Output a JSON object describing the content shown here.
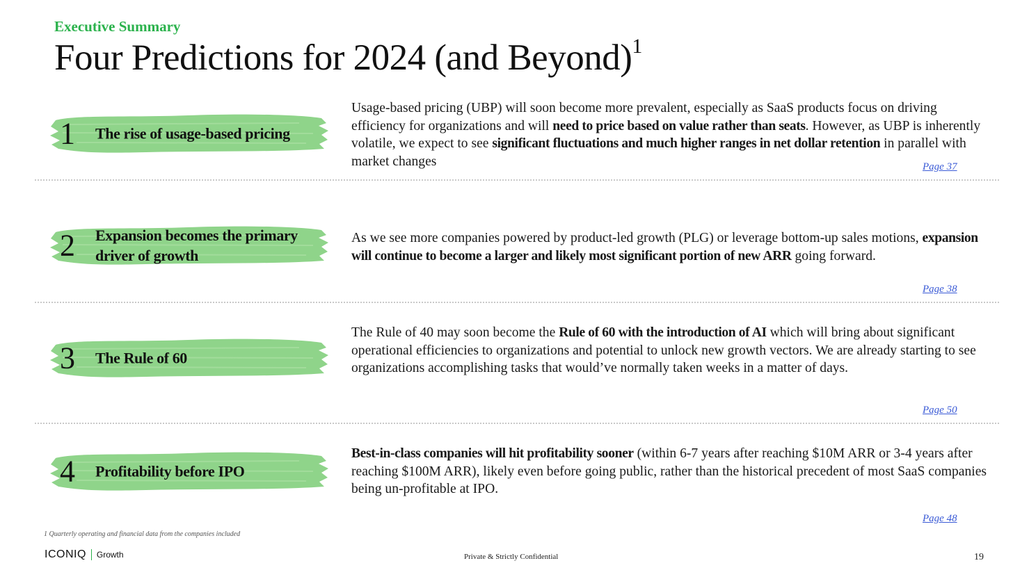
{
  "header": {
    "kicker": "Executive Summary",
    "title": "Four Predictions for 2024 (and Beyond)",
    "title_sup": "1"
  },
  "brush_color": "#8fd48a",
  "accent_color": "#2bb24c",
  "link_color": "#3b5bd6",
  "predictions": [
    {
      "number": "1",
      "label": "The rise of usage-based pricing",
      "desc": [
        {
          "t": "Usage-based pricing (UBP) will soon become more prevalent, especially as SaaS products focus on driving efficiency for organizations and will "
        },
        {
          "t": "need to price based on value rather than seats",
          "b": true
        },
        {
          "t": ". However, as UBP is inherently volatile, we expect to see "
        },
        {
          "t": "significant fluctuations and much higher ranges in net dollar retention",
          "b": true
        },
        {
          "t": " in parallel with market changes"
        }
      ],
      "page_link": "Page 37"
    },
    {
      "number": "2",
      "label": "Expansion becomes the primary driver of growth",
      "desc": [
        {
          "t": "As we see more companies powered by product-led growth (PLG) or leverage bottom-up sales motions, "
        },
        {
          "t": "expansion will continue to become a larger and likely most significant portion of new ARR",
          "b": true
        },
        {
          "t": " going forward."
        }
      ],
      "page_link": "Page 38"
    },
    {
      "number": "3",
      "label": "The Rule of 60",
      "desc": [
        {
          "t": "The Rule of 40 may soon become the "
        },
        {
          "t": "Rule of 60 with the introduction of AI",
          "b": true
        },
        {
          "t": " which will bring about significant operational efficiencies to organizations and potential to unlock new growth vectors. We are already starting to see organizations accomplishing tasks that would’ve normally taken weeks in a matter of days."
        }
      ],
      "page_link": "Page 50"
    },
    {
      "number": "4",
      "label": "Profitability before IPO",
      "desc": [
        {
          "t": "Best-in-class companies will hit profitability sooner",
          "b": true
        },
        {
          "t": " (within 6-7 years after reaching $10M ARR or 3-4 years after reaching $100M ARR), likely even before going public, rather than the historical precedent of most SaaS companies being un-profitable at IPO."
        }
      ],
      "page_link": "Page 48"
    }
  ],
  "footer": {
    "footnote": "1 Quarterly operating and financial data from the companies included",
    "logo_brand": "ICONIQ",
    "logo_sub": "Growth",
    "confidential": "Private & Strictly Confidential",
    "page_number": "19"
  }
}
